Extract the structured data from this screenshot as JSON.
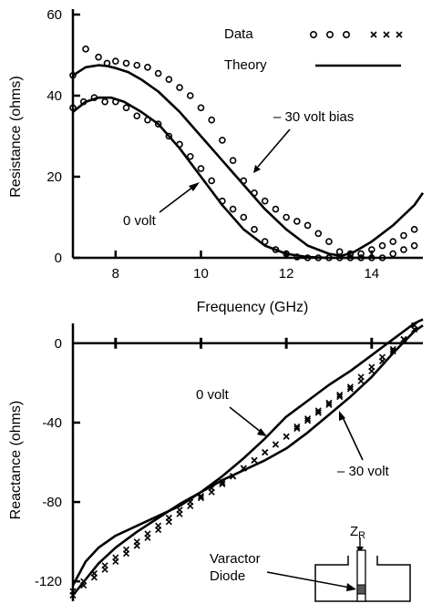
{
  "chart_data": [
    {
      "type": "line",
      "xlabel": "Frequency (GHz)",
      "ylabel": "Resistance (ohms)",
      "xlim": [
        7,
        15.2
      ],
      "ylim": [
        0,
        60
      ],
      "xticks": [
        8,
        10,
        12,
        14
      ],
      "xtick_labels": [
        "8",
        "10",
        "12",
        "14"
      ],
      "yticks": [
        0,
        20,
        40,
        60
      ],
      "ytick_labels": [
        "0",
        "20",
        "40",
        "60"
      ],
      "legend": {
        "data_label": "Data",
        "theory_label": "Theory",
        "data_circle_symbols": "o o o",
        "data_cross_symbols": "× × ×"
      },
      "annotations": [
        {
          "text": "– 30 volt bias"
        },
        {
          "text": "0  volt"
        }
      ],
      "series": [
        {
          "name": "– 30 volt bias",
          "kind": "theory",
          "x": [
            7.0,
            7.3,
            7.6,
            7.8,
            8.0,
            8.3,
            8.6,
            9.0,
            9.5,
            10.0,
            10.5,
            11.0,
            11.5,
            12.0,
            12.5,
            13.0,
            13.3,
            13.6,
            14.0,
            14.5,
            15.0,
            15.2
          ],
          "y": [
            45,
            47,
            47.5,
            47.3,
            46.8,
            45.8,
            44,
            41,
            36,
            30,
            24,
            18,
            12,
            7,
            3,
            1,
            0.5,
            1.5,
            4,
            8,
            13,
            16
          ]
        },
        {
          "name": "0  volt",
          "kind": "theory",
          "x": [
            7.0,
            7.3,
            7.6,
            7.9,
            8.2,
            8.6,
            9.0,
            9.5,
            10.0,
            10.5,
            11.0,
            11.5,
            12.0,
            12.5,
            13.0,
            13.5,
            14.0
          ],
          "y": [
            36,
            38.5,
            39.5,
            39.5,
            38.5,
            36,
            33,
            27,
            20,
            13,
            7,
            3,
            1,
            0.2,
            0,
            0,
            0
          ]
        },
        {
          "name": "– 30 volt bias",
          "kind": "data",
          "marker": "circle",
          "x": [
            7.0,
            7.3,
            7.6,
            7.8,
            8.0,
            8.25,
            8.5,
            8.75,
            9.0,
            9.25,
            9.5,
            9.75,
            10.0,
            10.25,
            10.5,
            10.75,
            11.0,
            11.25,
            11.5,
            11.75,
            12.0,
            12.25,
            12.5,
            12.75,
            13.0,
            13.25,
            13.5,
            13.75,
            14.0,
            14.25,
            14.5,
            14.75,
            15.0
          ],
          "y": [
            45,
            51.5,
            49.5,
            48,
            48.5,
            48,
            47.5,
            47,
            45.5,
            44,
            42,
            40,
            37,
            34,
            29,
            24,
            19,
            16,
            14,
            12,
            10,
            9,
            8,
            6,
            4,
            1.5,
            1,
            1,
            2,
            3,
            4,
            5.5,
            7
          ]
        },
        {
          "name": "0  volt",
          "kind": "data",
          "marker": "circle",
          "x": [
            7.0,
            7.25,
            7.5,
            7.75,
            8.0,
            8.25,
            8.5,
            8.75,
            9.0,
            9.25,
            9.5,
            9.75,
            10.0,
            10.25,
            10.5,
            10.75,
            11.0,
            11.25,
            11.5,
            11.75,
            12.0,
            12.25,
            12.5,
            12.75,
            13.0,
            13.25,
            13.5,
            13.75,
            14.0,
            14.25,
            14.5,
            14.75,
            15.0
          ],
          "y": [
            37,
            38.5,
            39.5,
            38.5,
            38.5,
            37,
            35,
            34,
            33,
            30,
            28,
            25,
            22,
            19,
            14,
            12,
            10,
            7,
            4,
            2,
            1,
            0.2,
            0,
            0,
            0,
            0,
            0,
            0,
            0,
            0,
            1,
            2,
            3
          ]
        }
      ]
    },
    {
      "type": "line",
      "xlabel": "",
      "ylabel": "Reactance (ohms)",
      "xlim": [
        7,
        15.2
      ],
      "ylim": [
        -130,
        10
      ],
      "xticks": [
        8,
        10,
        12,
        14
      ],
      "yticks": [
        0,
        -40,
        -80,
        -120
      ],
      "ytick_labels": [
        "0",
        "-40",
        "-80",
        "-120"
      ],
      "annotations": [
        {
          "text": "0  volt"
        },
        {
          "text": "– 30 volt"
        }
      ],
      "inset": {
        "label": "Z",
        "label_subscript": "R",
        "diode_line1": "Varactor",
        "diode_line2": "Diode"
      },
      "series": [
        {
          "name": "0  volt",
          "kind": "theory",
          "x": [
            7.0,
            7.3,
            7.6,
            8.0,
            8.5,
            9.0,
            9.5,
            10.0,
            10.5,
            11.0,
            11.5,
            12.0,
            12.5,
            13.0,
            13.5,
            14.0,
            14.5,
            15.0,
            15.2
          ],
          "y": [
            -127,
            -119,
            -111,
            -103,
            -95,
            -88,
            -81,
            -75,
            -67,
            -58,
            -48,
            -37,
            -29,
            -21,
            -14,
            -6,
            2,
            10,
            12
          ]
        },
        {
          "name": "– 30 volt",
          "kind": "theory",
          "x": [
            7.0,
            7.3,
            7.6,
            8.0,
            8.5,
            9.0,
            9.5,
            10.0,
            10.5,
            11.0,
            11.5,
            12.0,
            12.5,
            13.0,
            13.5,
            14.0,
            14.5,
            15.0,
            15.2
          ],
          "y": [
            -122,
            -110,
            -103,
            -97,
            -92,
            -87,
            -82,
            -75,
            -69,
            -64,
            -59,
            -53,
            -45,
            -36,
            -27,
            -17,
            -5,
            6,
            9
          ]
        },
        {
          "name": "0  volt",
          "kind": "data",
          "marker": "cross",
          "x": [
            7.0,
            7.25,
            7.5,
            7.75,
            8.0,
            8.25,
            8.5,
            8.75,
            9.0,
            9.25,
            9.5,
            9.75,
            10.0,
            10.25,
            10.5,
            10.75,
            11.0,
            11.25,
            11.5,
            11.75,
            12.0,
            12.25,
            12.5,
            12.75,
            13.0,
            13.25,
            13.5,
            13.75,
            14.0,
            14.25,
            14.5,
            14.75,
            15.0
          ],
          "y": [
            -125,
            -120,
            -116,
            -112,
            -108,
            -104,
            -100,
            -96,
            -92,
            -88,
            -84,
            -80,
            -77,
            -73,
            -70,
            -67,
            -63,
            -59,
            -55,
            -51,
            -47,
            -42,
            -38,
            -34,
            -30,
            -26,
            -22,
            -17,
            -12,
            -7,
            -3,
            2,
            7
          ]
        },
        {
          "name": "– 30 volt",
          "kind": "data",
          "marker": "cross",
          "x": [
            7.0,
            7.25,
            7.5,
            7.75,
            8.0,
            8.25,
            8.5,
            8.75,
            9.0,
            9.25,
            9.5,
            9.75,
            10.0,
            10.25,
            10.5,
            10.75,
            11.0,
            11.25,
            11.5,
            11.75,
            12.0,
            12.25,
            12.5,
            12.75,
            13.0,
            13.25,
            13.5,
            13.75,
            14.0,
            14.25,
            14.5,
            14.75,
            15.0
          ],
          "y": [
            -127,
            -122,
            -118,
            -114,
            -110,
            -106,
            -102,
            -98,
            -94,
            -90,
            -86,
            -82,
            -78,
            -75,
            -71,
            -67,
            -63,
            -59,
            -55,
            -51,
            -47,
            -43,
            -39,
            -35,
            -31,
            -27,
            -23,
            -19,
            -14,
            -9,
            -4,
            2,
            9
          ]
        }
      ]
    }
  ]
}
